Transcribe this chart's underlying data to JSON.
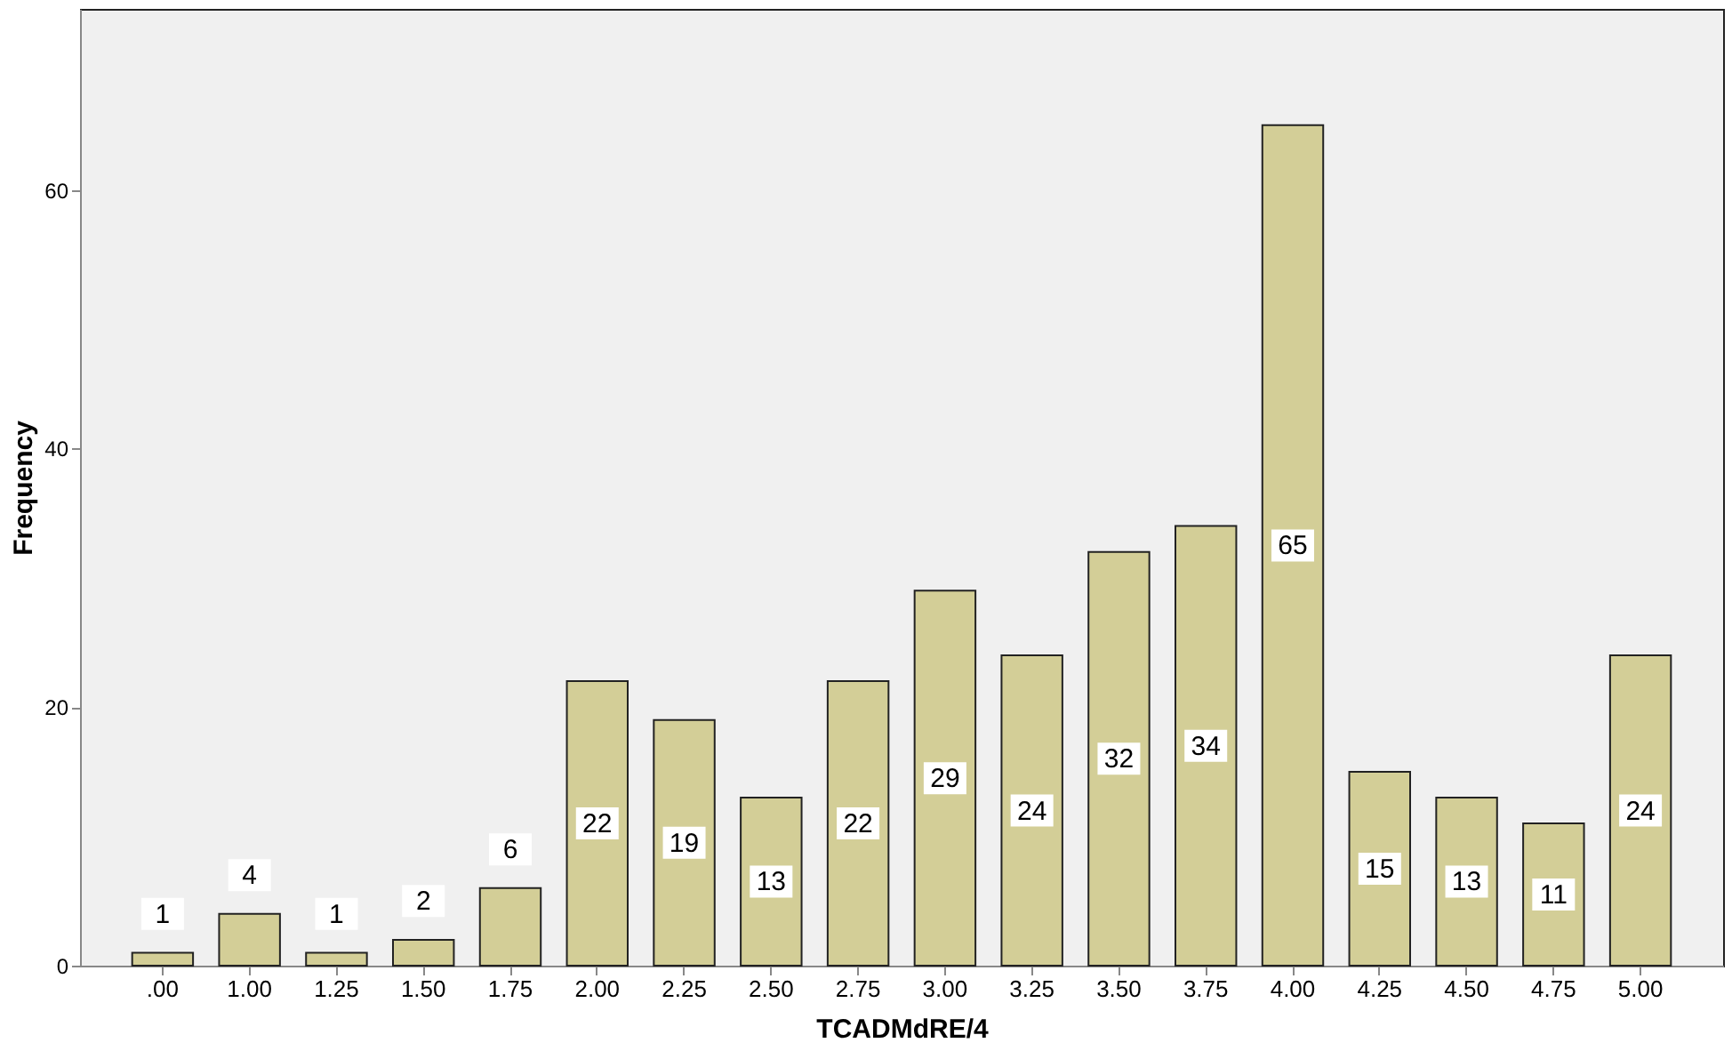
{
  "chart_data": {
    "type": "bar",
    "xlabel": "TCADMdRE/4",
    "ylabel": "Frequency",
    "categories": [
      ".00",
      "1.00",
      "1.25",
      "1.50",
      "1.75",
      "2.00",
      "2.25",
      "2.50",
      "2.75",
      "3.00",
      "3.25",
      "3.50",
      "3.75",
      "4.00",
      "4.25",
      "4.50",
      "4.75",
      "5.00"
    ],
    "values": [
      1,
      4,
      1,
      2,
      6,
      22,
      19,
      13,
      22,
      29,
      24,
      32,
      34,
      65,
      15,
      13,
      11,
      24
    ],
    "color": "#d3ce97",
    "ylim": [
      0,
      74
    ],
    "yticks": [
      0,
      20,
      40,
      60
    ],
    "grid": false,
    "data_labels": true
  }
}
